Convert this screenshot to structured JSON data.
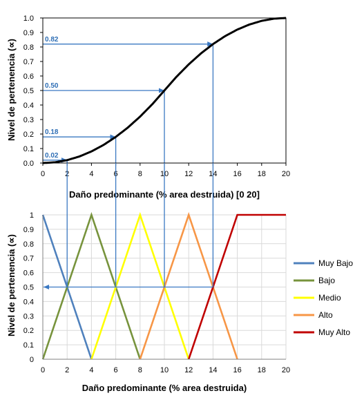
{
  "colors": {
    "curve": "#000000",
    "annotation": "#3a78c2",
    "grid": "#d9d9d9",
    "muy_bajo": "#4f81bd",
    "bajo": "#77933c",
    "medio": "#ffff00",
    "alto": "#f79646",
    "muy_alto": "#c00000"
  },
  "chart_data": [
    {
      "type": "line",
      "xlabel": "Daño predominante (% area destruida)  [0 20]",
      "ylabel": "Nivel de pertenencia  (∝)",
      "xlim": [
        0,
        20
      ],
      "ylim": [
        0,
        1
      ],
      "xticks": [
        "0",
        "2",
        "4",
        "6",
        "8",
        "10",
        "12",
        "14",
        "16",
        "18",
        "20"
      ],
      "yticks": [
        "0.0",
        "0.1",
        "0.2",
        "0.3",
        "0.4",
        "0.5",
        "0.6",
        "0.7",
        "0.8",
        "0.9",
        "1.0"
      ],
      "grid": false,
      "curve": "s-shaped",
      "series": [
        {
          "x": [
            0,
            1,
            2,
            3,
            4,
            5,
            6,
            7,
            8,
            9,
            10,
            11,
            12,
            13,
            14,
            15,
            16,
            17,
            18,
            19,
            20
          ],
          "y": [
            0.0,
            0.005,
            0.02,
            0.045,
            0.08,
            0.125,
            0.18,
            0.245,
            0.32,
            0.405,
            0.5,
            0.595,
            0.68,
            0.755,
            0.82,
            0.875,
            0.92,
            0.955,
            0.98,
            0.995,
            1.0
          ]
        }
      ],
      "annotations": [
        {
          "x": 2,
          "y": 0.02,
          "label": "0.02"
        },
        {
          "x": 6,
          "y": 0.18,
          "label": "0.18"
        },
        {
          "x": 10,
          "y": 0.5,
          "label": "0.50"
        },
        {
          "x": 14,
          "y": 0.82,
          "label": "0.82"
        }
      ]
    },
    {
      "type": "line",
      "xlabel": "Daño predominante (% area destruida)",
      "ylabel": "Nivel de pertenencia  (∝)",
      "xlim": [
        0,
        20
      ],
      "ylim": [
        0,
        1
      ],
      "xticks": [
        "0",
        "2",
        "4",
        "6",
        "8",
        "10",
        "12",
        "14",
        "16",
        "18",
        "20"
      ],
      "yticks": [
        "0",
        "0.1",
        "0.2",
        "0.3",
        "0.4",
        "0.5",
        "0.6",
        "0.7",
        "0.8",
        "0.9",
        "1"
      ],
      "grid": true,
      "legend_position": "right",
      "series": [
        {
          "name": "Muy Bajo",
          "color_key": "muy_bajo",
          "x": [
            0,
            4
          ],
          "y": [
            1,
            0
          ]
        },
        {
          "name": "Bajo",
          "color_key": "bajo",
          "x": [
            0,
            4,
            8
          ],
          "y": [
            0,
            1,
            0
          ]
        },
        {
          "name": "Medio",
          "color_key": "medio",
          "x": [
            4,
            8,
            12
          ],
          "y": [
            0,
            1,
            0
          ]
        },
        {
          "name": "Alto",
          "color_key": "alto",
          "x": [
            8,
            12,
            16
          ],
          "y": [
            0,
            1,
            0
          ]
        },
        {
          "name": "Muy Alto",
          "color_key": "muy_alto",
          "x": [
            12,
            16,
            20
          ],
          "y": [
            0,
            1,
            1
          ]
        }
      ],
      "reference": {
        "y": 0.5,
        "x_from": 14,
        "x_to": 0
      }
    }
  ]
}
